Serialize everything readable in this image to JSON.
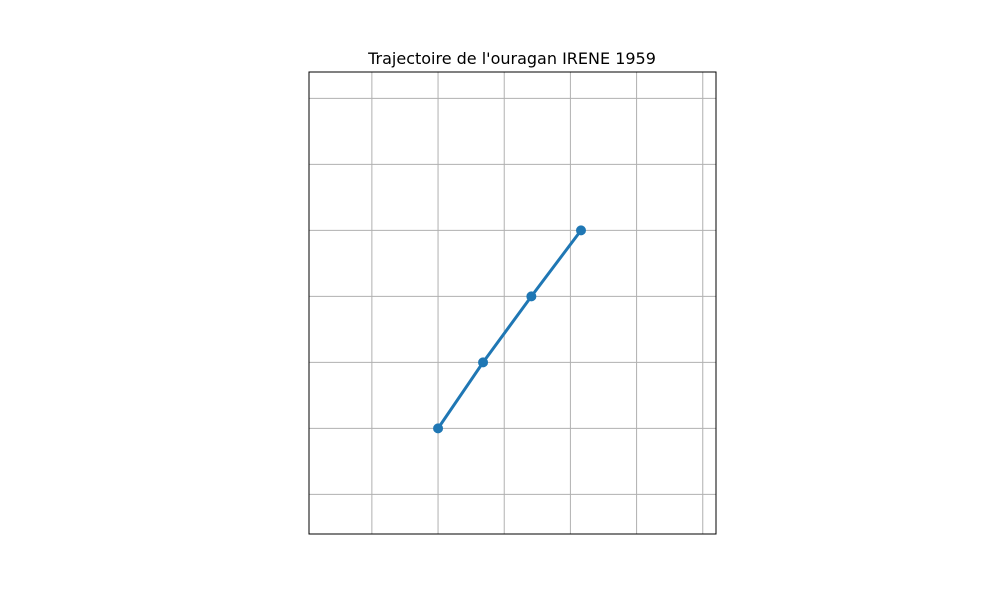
{
  "chart_data": {
    "type": "line",
    "title": "Trajectoire de l'ouragan IRENE 1959",
    "xlabel": "",
    "ylabel": "",
    "grid": true,
    "xlim": [
      -0.95,
      5.2
    ],
    "ylim": [
      -2.6,
      4.4
    ],
    "x_gridlines": [
      0,
      1,
      2,
      3,
      4,
      5
    ],
    "y_gridlines": [
      -2,
      -1,
      0,
      1,
      2,
      3,
      4
    ],
    "series": [
      {
        "values": [
          {
            "x": 1.0,
            "y": -1.0
          },
          {
            "x": 1.68,
            "y": 0.0
          },
          {
            "x": 2.41,
            "y": 1.0
          },
          {
            "x": 3.16,
            "y": 2.0
          }
        ]
      }
    ],
    "colors": {
      "series": "#1f77b4",
      "grid": "#b0b0b0",
      "axes": "#000000"
    }
  }
}
